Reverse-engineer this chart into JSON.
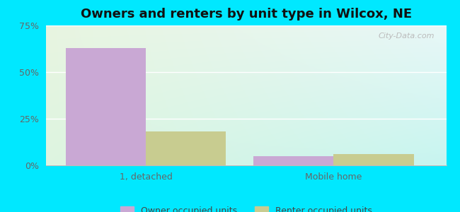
{
  "title": "Owners and renters by unit type in Wilcox, NE",
  "categories": [
    "1, detached",
    "Mobile home"
  ],
  "owner_values": [
    63,
    5
  ],
  "renter_values": [
    18,
    6
  ],
  "owner_color": "#c9a8d4",
  "renter_color": "#c8cc90",
  "bar_width": 0.32,
  "ylim": [
    0,
    75
  ],
  "yticks": [
    0,
    25,
    50,
    75
  ],
  "yticklabels": [
    "0%",
    "25%",
    "50%",
    "75%"
  ],
  "legend_owner": "Owner occupied units",
  "legend_renter": "Renter occupied units",
  "bg_topleft": "#e8f5e0",
  "bg_topright": "#e8f8f8",
  "bg_bottomleft": "#dff5e0",
  "bg_bottomright": "#c8f5f0",
  "outer_bg": "#00e8ff",
  "watermark": "City-Data.com",
  "title_fontsize": 13,
  "label_fontsize": 9,
  "legend_fontsize": 9,
  "x_positions": [
    0.25,
    1.0
  ],
  "xlim": [
    -0.15,
    1.45
  ]
}
